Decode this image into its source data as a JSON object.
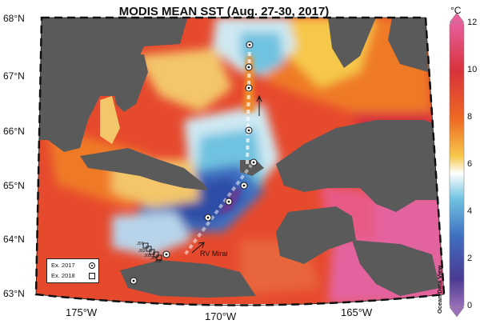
{
  "title": "MODIS MEAN SST (Aug. 27-30, 2017)",
  "lat_labels": [
    "68°N",
    "67°N",
    "66°N",
    "65°N",
    "64°N",
    "63°N"
  ],
  "lon_labels": [
    "175°W",
    "170°W",
    "165°W"
  ],
  "colorbar": {
    "unit": "°C",
    "ticks": [
      "12",
      "10",
      "8",
      "6",
      "4",
      "2",
      "0"
    ],
    "colors": [
      "#e8609e",
      "#d8323c",
      "#ef6a22",
      "#f6c84a",
      "#ffffff",
      "#6fc3e0",
      "#3f6fc1",
      "#4a3a92",
      "#9a70b8"
    ]
  },
  "watermark": "Ocean Data View",
  "legend": {
    "ex2017": "Ex. 2017",
    "ex2018": "Ex. 2018"
  },
  "ship_label": "RV Mirai",
  "station_labels": [
    "J01",
    "J02",
    "J03",
    "J04",
    "J05"
  ],
  "colors": {
    "land": "#5a5a5a",
    "warm": "#e64a2d",
    "mid": "#f6c84a",
    "cold": "#2e4da6",
    "purple": "#e3649f"
  }
}
